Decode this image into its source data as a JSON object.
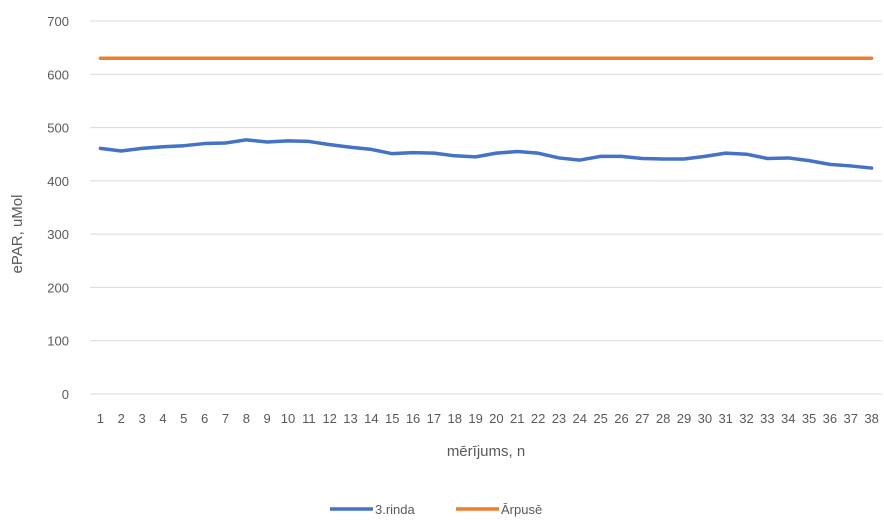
{
  "chart_data": {
    "type": "line",
    "title": "",
    "xlabel": "mērījums, n",
    "ylabel": "ePAR, uMol",
    "ylim": [
      0,
      700
    ],
    "yticks": [
      0,
      100,
      200,
      300,
      400,
      500,
      600,
      700
    ],
    "grid": "horizontal",
    "legend": "bottom",
    "categories": [
      "1",
      "2",
      "3",
      "4",
      "5",
      "6",
      "7",
      "8",
      "9",
      "10",
      "11",
      "12",
      "13",
      "14",
      "15",
      "16",
      "17",
      "18",
      "19",
      "20",
      "21",
      "22",
      "23",
      "24",
      "25",
      "26",
      "27",
      "28",
      "29",
      "30",
      "31",
      "32",
      "33",
      "34",
      "35",
      "36",
      "37",
      "38"
    ],
    "series": [
      {
        "name": "3.rinda",
        "color": "#4472C4",
        "values": [
          461,
          456,
          461,
          464,
          466,
          470,
          471,
          477,
          473,
          475,
          474,
          468,
          463,
          459,
          451,
          453,
          452,
          447,
          445,
          452,
          455,
          452,
          443,
          439,
          446,
          446,
          442,
          441,
          441,
          446,
          452,
          450,
          442,
          443,
          438,
          431,
          428,
          424
        ]
      },
      {
        "name": "Ārpusē",
        "color": "#ED7D31",
        "values": [
          630,
          630,
          630,
          630,
          630,
          630,
          630,
          630,
          630,
          630,
          630,
          630,
          630,
          630,
          630,
          630,
          630,
          630,
          630,
          630,
          630,
          630,
          630,
          630,
          630,
          630,
          630,
          630,
          630,
          630,
          630,
          630,
          630,
          630,
          630,
          630,
          630,
          630
        ]
      }
    ]
  }
}
